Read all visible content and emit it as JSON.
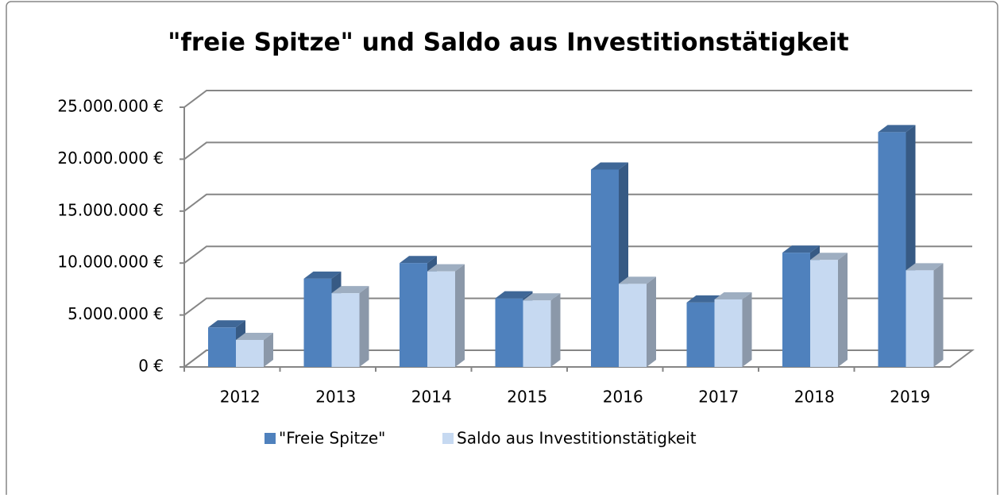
{
  "chart_data": {
    "type": "bar3d",
    "title": "\"freie Spitze\" und Saldo aus Investitionstätigkeit",
    "categories": [
      "2012",
      "2013",
      "2014",
      "2015",
      "2016",
      "2017",
      "2018",
      "2019"
    ],
    "series": [
      {
        "name": "\"Freie Spitze\"",
        "color": "#4f81bd",
        "values": [
          3800000,
          8500000,
          10000000,
          6600000,
          19000000,
          6200000,
          11000000,
          22600000
        ]
      },
      {
        "name": "Saldo aus Investitionstätigkeit",
        "color": "#c6d9f1",
        "values": [
          2600000,
          7100000,
          9200000,
          6400000,
          8000000,
          6500000,
          10300000,
          9300000
        ]
      }
    ],
    "ylim": [
      0,
      25000000
    ],
    "yticks": [
      {
        "value": 0,
        "label": "0 €"
      },
      {
        "value": 5000000,
        "label": "5.000.000 €"
      },
      {
        "value": 10000000,
        "label": "10.000.000 €"
      },
      {
        "value": 15000000,
        "label": "15.000.000 €"
      },
      {
        "value": 20000000,
        "label": "20.000.000 €"
      },
      {
        "value": 25000000,
        "label": "25.000.000 €"
      }
    ],
    "grid": true,
    "legend": "bottom"
  }
}
